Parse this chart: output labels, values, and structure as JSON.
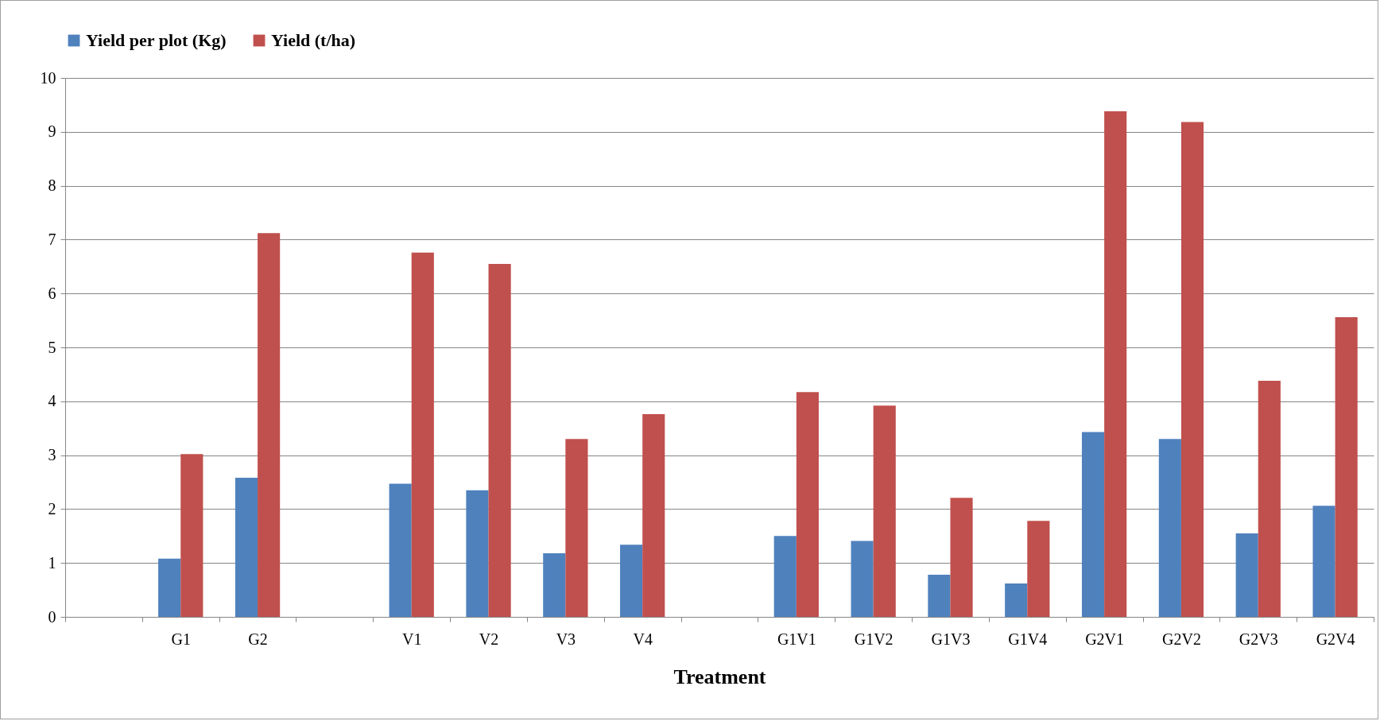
{
  "chart_data": {
    "type": "bar",
    "xlabel": "Treatment",
    "categories": [
      null,
      "G1",
      "G2",
      null,
      "V1",
      "V2",
      "V3",
      "V4",
      null,
      "G1V1",
      "G1V2",
      "G1V3",
      "G1V4",
      "G2V1",
      "G2V2",
      "G2V3",
      "G2V4"
    ],
    "series": [
      {
        "name": "Yield per plot (Kg)",
        "color": "#4f81bd",
        "values": [
          null,
          1.08,
          2.58,
          null,
          2.47,
          2.35,
          1.18,
          1.34,
          null,
          1.5,
          1.41,
          0.78,
          0.62,
          3.43,
          3.3,
          1.55,
          2.06
        ]
      },
      {
        "name": "Yield (t/ha)",
        "color": "#c0504d",
        "values": [
          null,
          3.02,
          7.12,
          null,
          6.76,
          6.55,
          3.3,
          3.76,
          null,
          4.17,
          3.92,
          2.21,
          1.78,
          9.38,
          9.18,
          4.38,
          5.56
        ]
      }
    ],
    "ylim": [
      0,
      10
    ],
    "yticks": [
      0,
      1,
      2,
      3,
      4,
      5,
      6,
      7,
      8,
      9,
      10
    ],
    "grid": "y",
    "legend": "top"
  }
}
